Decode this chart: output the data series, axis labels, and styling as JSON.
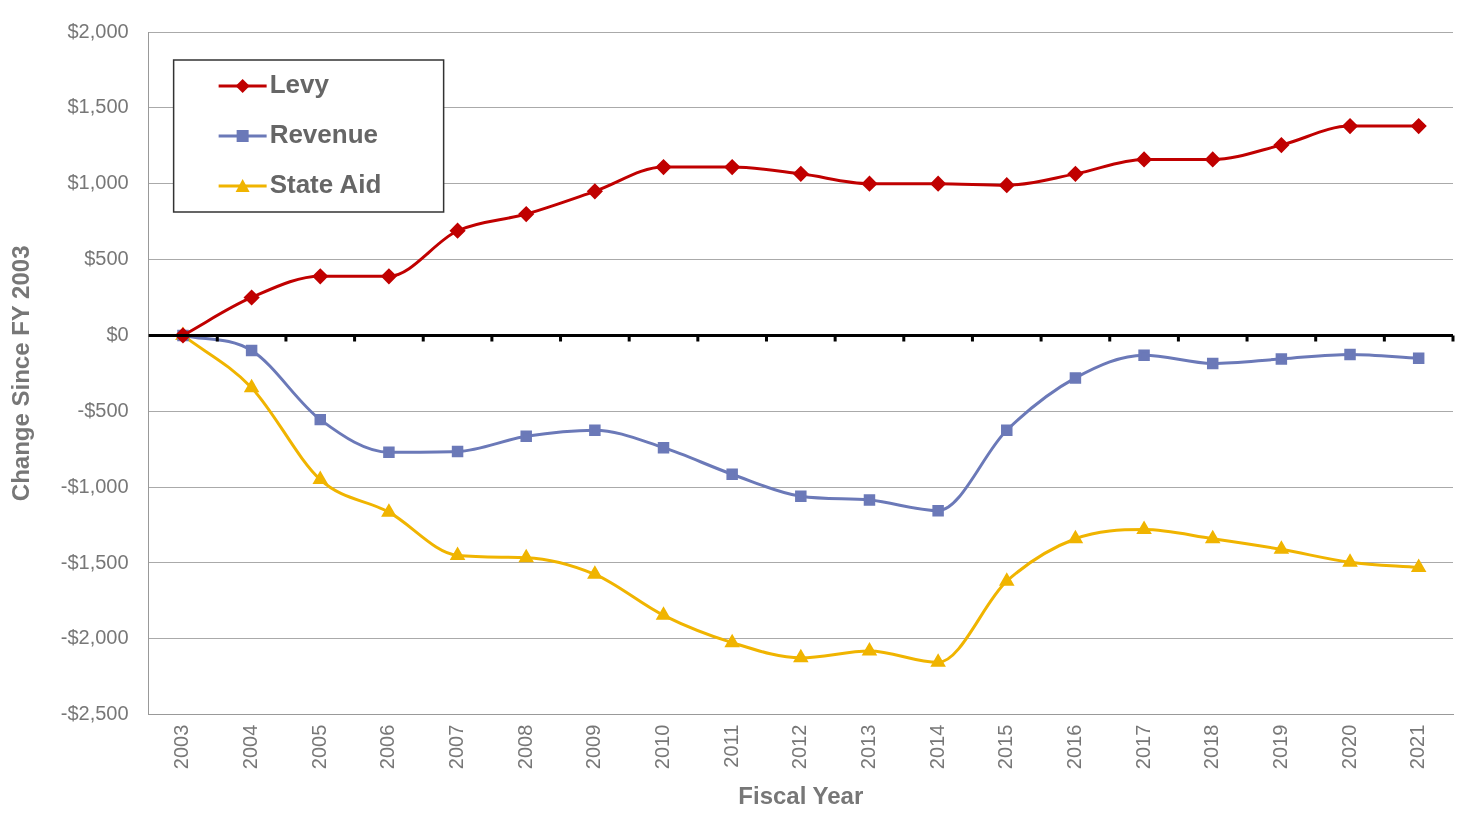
{
  "chart_data": {
    "type": "line",
    "xlabel": "Fiscal Year",
    "ylabel": "Change Since FY 2003",
    "categories": [
      "2003",
      "2004",
      "2005",
      "2006",
      "2007",
      "2008",
      "2009",
      "2010",
      "2011",
      "2012",
      "2013",
      "2014",
      "2015",
      "2016",
      "2017",
      "2018",
      "2019",
      "2020",
      "2021"
    ],
    "series": [
      {
        "name": "Levy",
        "color": "#c00000",
        "marker": "diamond",
        "values": [
          0,
          250,
          390,
          390,
          690,
          800,
          950,
          1110,
          1110,
          1065,
          1000,
          1000,
          990,
          1065,
          1160,
          1160,
          1255,
          1380,
          1380
        ]
      },
      {
        "name": "Revenue",
        "color": "#6b79b8",
        "marker": "square",
        "values": [
          0,
          -100,
          -555,
          -770,
          -765,
          -665,
          -625,
          -740,
          -915,
          -1060,
          -1085,
          -1155,
          -625,
          -280,
          -130,
          -185,
          -155,
          -125,
          -150
        ]
      },
      {
        "name": "State Aid",
        "color": "#f0b400",
        "marker": "triangle",
        "values": [
          0,
          -345,
          -950,
          -1165,
          -1450,
          -1465,
          -1575,
          -1845,
          -2025,
          -2125,
          -2080,
          -2155,
          -1620,
          -1340,
          -1280,
          -1340,
          -1410,
          -1495,
          -1530
        ]
      }
    ],
    "ylim": [
      -2500,
      2000
    ],
    "yticks": [
      {
        "value": -2500,
        "label": "-$2,500"
      },
      {
        "value": -2000,
        "label": "-$2,000"
      },
      {
        "value": -1500,
        "label": "-$1,500"
      },
      {
        "value": -1000,
        "label": "-$1,000"
      },
      {
        "value": -500,
        "label": "-$500"
      },
      {
        "value": 0,
        "label": "$0"
      },
      {
        "value": 500,
        "label": "$500"
      },
      {
        "value": 1000,
        "label": "$1,000"
      },
      {
        "value": 1500,
        "label": "$1,500"
      },
      {
        "value": 2000,
        "label": "$2,000"
      }
    ],
    "ref_lines": [
      {
        "axis": "y",
        "value": 0,
        "color": "#000000"
      }
    ],
    "grid": "y",
    "legend": "top left",
    "line_style": "solid"
  }
}
